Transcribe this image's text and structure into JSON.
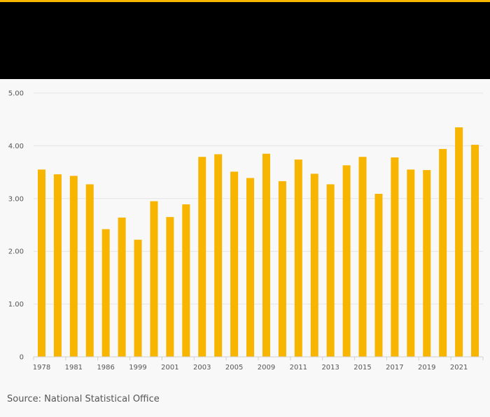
{
  "colors": {
    "accent": "#f7b500",
    "header_bg": "#000000",
    "page_bg": "#f8f8f8"
  },
  "footer": {
    "source": "Source: National Statistical Office"
  },
  "chart_data": {
    "type": "bar",
    "title": "",
    "xlabel": "",
    "ylabel": "",
    "ylim": [
      0,
      5
    ],
    "y_ticks": [
      0,
      1,
      2,
      3,
      4,
      5
    ],
    "y_tick_labels": [
      "0",
      "1.00",
      "2.00",
      "3.00",
      "4.00",
      "5.00"
    ],
    "grid": true,
    "x_tick_labels": [
      {
        "index": 0,
        "label": "1978"
      },
      {
        "index": 2,
        "label": "1981"
      },
      {
        "index": 4,
        "label": "1986"
      },
      {
        "index": 6,
        "label": "1999"
      },
      {
        "index": 8,
        "label": "2001"
      },
      {
        "index": 10,
        "label": "2003"
      },
      {
        "index": 12,
        "label": "2005"
      },
      {
        "index": 14,
        "label": "2009"
      },
      {
        "index": 16,
        "label": "2011"
      },
      {
        "index": 18,
        "label": "2013"
      },
      {
        "index": 20,
        "label": "2015"
      },
      {
        "index": 22,
        "label": "2017"
      },
      {
        "index": 24,
        "label": "2019"
      },
      {
        "index": 26,
        "label": "2021"
      }
    ],
    "values": [
      3.55,
      3.46,
      3.43,
      3.27,
      2.42,
      2.64,
      2.22,
      2.95,
      2.65,
      2.89,
      3.79,
      3.84,
      3.51,
      3.39,
      3.85,
      3.33,
      3.74,
      3.47,
      3.27,
      3.63,
      3.79,
      3.09,
      3.78,
      3.55,
      3.54,
      3.94,
      4.35,
      4.02
    ],
    "bar_color": "#f7b500"
  }
}
